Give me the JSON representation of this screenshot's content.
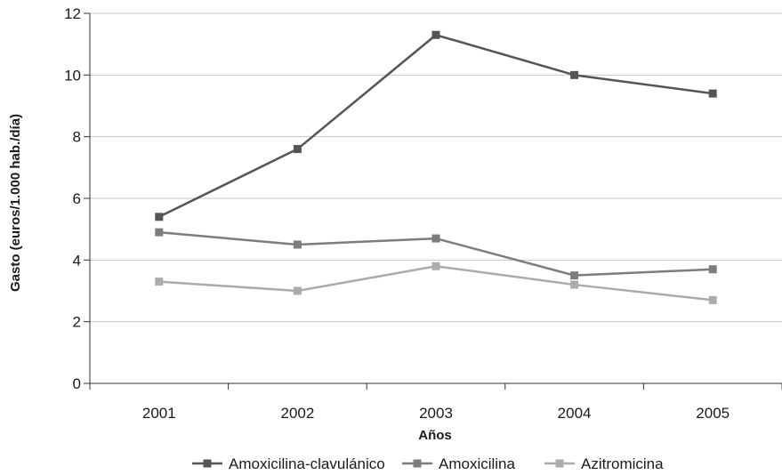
{
  "chart_data": {
    "type": "line",
    "title": "",
    "xlabel": "Años",
    "ylabel": "Gasto (euros/1.000 hab./día)",
    "categories": [
      "2001",
      "2002",
      "2003",
      "2004",
      "2005"
    ],
    "ylim": [
      0,
      12
    ],
    "yticks": [
      0,
      2,
      4,
      6,
      8,
      10,
      12
    ],
    "grid": "horizontal",
    "legend_position": "bottom",
    "series": [
      {
        "name": "Amoxicilina-clavulánico",
        "color": "#555555",
        "values": [
          5.4,
          7.6,
          11.3,
          10.0,
          9.4
        ]
      },
      {
        "name": "Amoxicilina",
        "color": "#7d7d7d",
        "values": [
          4.9,
          4.5,
          4.7,
          3.5,
          3.7
        ]
      },
      {
        "name": "Azitromicina",
        "color": "#ababab",
        "values": [
          3.3,
          3.0,
          3.8,
          3.2,
          2.7
        ]
      }
    ]
  }
}
